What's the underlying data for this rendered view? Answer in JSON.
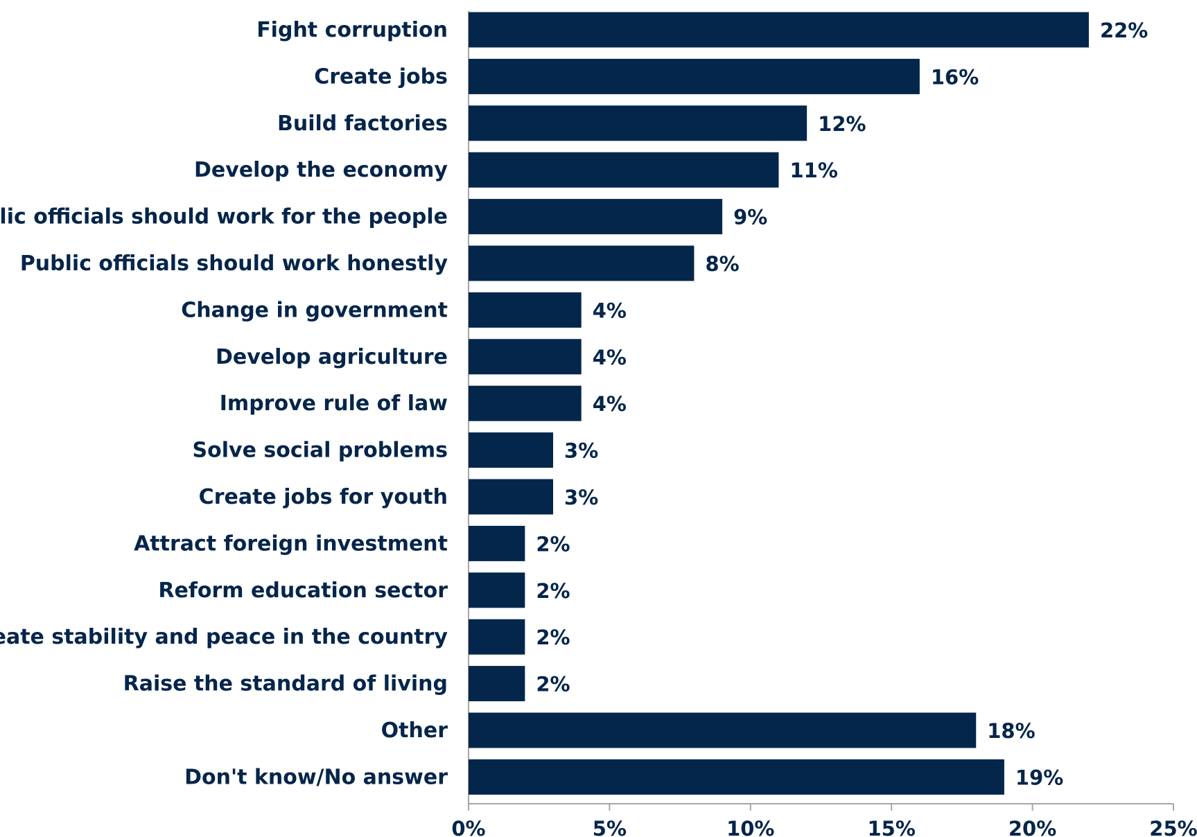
{
  "chart_data": {
    "type": "bar",
    "orientation": "horizontal",
    "categories": [
      "Fight corruption",
      "Create jobs",
      "Build factories",
      "Develop the economy",
      "Public officials should work for the people",
      "Public officials should work honestly",
      "Change in government ",
      "Develop agriculture",
      "Improve rule of law",
      "Solve social problems",
      "Create jobs for youth",
      "Attract foreign investment",
      "Reform education sector",
      "Create stability and peace in the country",
      "Raise the standard of living",
      "Other",
      "Don't know/No answer"
    ],
    "values": [
      22,
      16,
      12,
      11,
      9,
      8,
      4,
      4,
      4,
      3,
      3,
      2,
      2,
      2,
      2,
      18,
      19
    ],
    "value_labels": [
      "22%",
      "16%",
      "12%",
      "11%",
      "9%",
      "8%",
      "4%",
      "4%",
      "4%",
      "3%",
      "3%",
      "2%",
      "2%",
      "2%",
      "2%",
      "18%",
      "19%"
    ],
    "x_ticks": [
      0,
      5,
      10,
      15,
      20,
      25
    ],
    "x_tick_labels": [
      "0%",
      "5%",
      "10%",
      "15%",
      "20%",
      "25%"
    ],
    "xlim": [
      0,
      25
    ],
    "grid": false,
    "legend": "none",
    "colors": {
      "bar": "#03264a",
      "text": "#05254a",
      "axis": "#a6a6a6"
    }
  }
}
